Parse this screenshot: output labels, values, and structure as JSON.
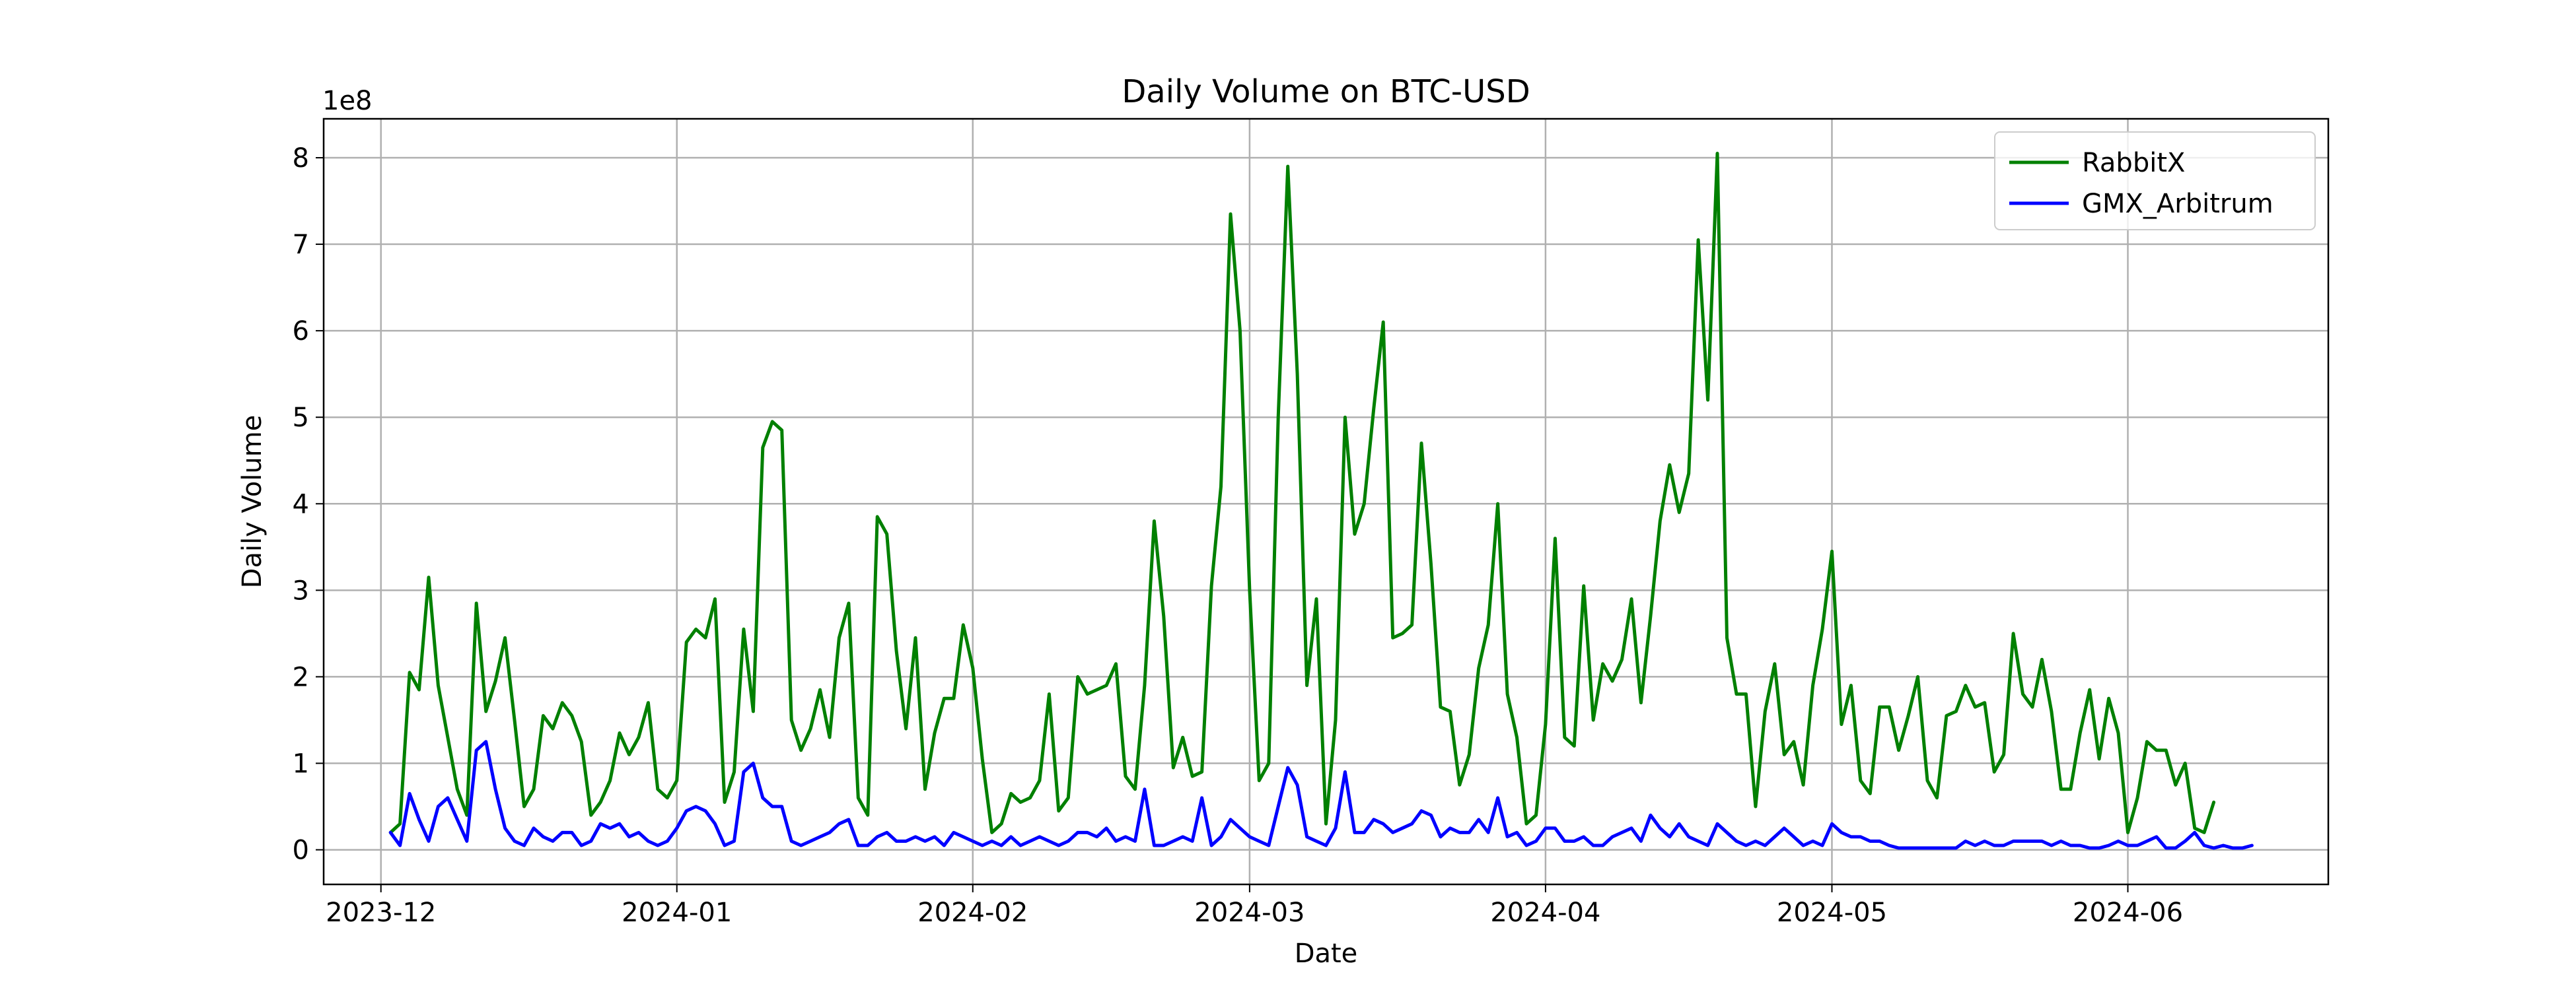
{
  "chart_data": {
    "type": "line",
    "title": "Daily Volume on BTC-USD",
    "xlabel": "Date",
    "ylabel": "Daily Volume",
    "y_scale_label": "1e8",
    "xlim": [
      "2023-11-25",
      "2024-06-22"
    ],
    "ylim": [
      -0.4,
      8.45
    ],
    "x_ticks": [
      "2023-12-01",
      "2024-01-01",
      "2024-02-01",
      "2024-03-01",
      "2024-04-01",
      "2024-05-01",
      "2024-06-01"
    ],
    "x_tick_labels": [
      "2023-12",
      "2024-01",
      "2024-02",
      "2024-03",
      "2024-04",
      "2024-05",
      "2024-06"
    ],
    "y_ticks": [
      0,
      1,
      2,
      3,
      4,
      5,
      6,
      7,
      8
    ],
    "grid": true,
    "legend_position": "top-right",
    "start_date": "2023-12-02",
    "series": [
      {
        "name": "RabbitX",
        "color": "#008000",
        "values": [
          0.2,
          0.3,
          2.05,
          1.85,
          3.15,
          1.9,
          1.3,
          0.7,
          0.4,
          2.85,
          1.6,
          1.95,
          2.45,
          1.5,
          0.5,
          0.7,
          1.55,
          1.4,
          1.7,
          1.55,
          1.25,
          0.4,
          0.55,
          0.8,
          1.35,
          1.1,
          1.3,
          1.7,
          0.7,
          0.6,
          0.8,
          2.4,
          2.55,
          2.45,
          2.9,
          0.55,
          0.9,
          2.55,
          1.6,
          4.65,
          4.95,
          4.85,
          1.5,
          1.15,
          1.4,
          1.85,
          1.3,
          2.45,
          2.85,
          0.6,
          0.4,
          3.85,
          3.65,
          2.3,
          1.4,
          2.45,
          0.7,
          1.35,
          1.75,
          1.75,
          2.6,
          2.1,
          1.05,
          0.2,
          0.3,
          0.65,
          0.55,
          0.6,
          0.8,
          1.8,
          0.45,
          0.6,
          2.0,
          1.8,
          1.85,
          1.9,
          2.15,
          0.85,
          0.7,
          1.9,
          3.8,
          2.7,
          0.95,
          1.3,
          0.85,
          0.9,
          3.05,
          4.2,
          7.35,
          6.0,
          3.0,
          0.8,
          1.0,
          5.0,
          7.9,
          5.5,
          1.9,
          2.9,
          0.3,
          1.5,
          5.0,
          3.65,
          4.0,
          5.1,
          6.1,
          2.45,
          2.5,
          2.6,
          4.7,
          3.3,
          1.65,
          1.6,
          0.75,
          1.1,
          2.1,
          2.6,
          4.0,
          1.8,
          1.3,
          0.3,
          0.4,
          1.45,
          3.6,
          1.3,
          1.2,
          3.05,
          1.5,
          2.15,
          1.95,
          2.2,
          2.9,
          1.7,
          2.7,
          3.8,
          4.45,
          3.9,
          4.35,
          7.05,
          5.2,
          8.05,
          2.45,
          1.8,
          1.8,
          0.5,
          1.6,
          2.15,
          1.1,
          1.25,
          0.75,
          1.9,
          2.55,
          3.45,
          1.45,
          1.9,
          0.8,
          0.65,
          1.65,
          1.65,
          1.15,
          1.55,
          2.0,
          0.8,
          0.6,
          1.55,
          1.6,
          1.9,
          1.65,
          1.7,
          0.9,
          1.1,
          2.5,
          1.8,
          1.65,
          2.2,
          1.6,
          0.7,
          0.7,
          1.35,
          1.85,
          1.05,
          1.75,
          1.35,
          0.2,
          0.6,
          1.25,
          1.15,
          1.15,
          0.75,
          1.0,
          0.25,
          0.2,
          0.55
        ]
      },
      {
        "name": "GMX_Arbitrum",
        "color": "#0000ff",
        "values": [
          0.2,
          0.05,
          0.65,
          0.35,
          0.1,
          0.5,
          0.6,
          0.35,
          0.1,
          1.15,
          1.25,
          0.7,
          0.25,
          0.1,
          0.05,
          0.25,
          0.15,
          0.1,
          0.2,
          0.2,
          0.05,
          0.1,
          0.3,
          0.25,
          0.3,
          0.15,
          0.2,
          0.1,
          0.05,
          0.1,
          0.25,
          0.45,
          0.5,
          0.45,
          0.3,
          0.05,
          0.1,
          0.9,
          1.0,
          0.6,
          0.5,
          0.5,
          0.1,
          0.05,
          0.1,
          0.15,
          0.2,
          0.3,
          0.35,
          0.05,
          0.05,
          0.15,
          0.2,
          0.1,
          0.1,
          0.15,
          0.1,
          0.15,
          0.05,
          0.2,
          0.15,
          0.1,
          0.05,
          0.1,
          0.05,
          0.15,
          0.05,
          0.1,
          0.15,
          0.1,
          0.05,
          0.1,
          0.2,
          0.2,
          0.15,
          0.25,
          0.1,
          0.15,
          0.1,
          0.7,
          0.05,
          0.05,
          0.1,
          0.15,
          0.1,
          0.6,
          0.05,
          0.15,
          0.35,
          0.25,
          0.15,
          0.1,
          0.05,
          0.5,
          0.95,
          0.75,
          0.15,
          0.1,
          0.05,
          0.25,
          0.9,
          0.2,
          0.2,
          0.35,
          0.3,
          0.2,
          0.25,
          0.3,
          0.45,
          0.4,
          0.15,
          0.25,
          0.2,
          0.2,
          0.35,
          0.2,
          0.6,
          0.15,
          0.2,
          0.05,
          0.1,
          0.25,
          0.25,
          0.1,
          0.1,
          0.15,
          0.05,
          0.05,
          0.15,
          0.2,
          0.25,
          0.1,
          0.4,
          0.25,
          0.15,
          0.3,
          0.15,
          0.1,
          0.05,
          0.3,
          0.2,
          0.1,
          0.05,
          0.1,
          0.05,
          0.15,
          0.25,
          0.15,
          0.05,
          0.1,
          0.05,
          0.3,
          0.2,
          0.15,
          0.15,
          0.1,
          0.1,
          0.05,
          0.02,
          0.02,
          0.02,
          0.02,
          0.02,
          0.02,
          0.02,
          0.1,
          0.05,
          0.1,
          0.05,
          0.05,
          0.1,
          0.1,
          0.1,
          0.1,
          0.05,
          0.1,
          0.05,
          0.05,
          0.02,
          0.02,
          0.05,
          0.1,
          0.05,
          0.05,
          0.1,
          0.15,
          0.02,
          0.02,
          0.1,
          0.2,
          0.05,
          0.02,
          0.05,
          0.02,
          0.02,
          0.05
        ]
      }
    ]
  }
}
